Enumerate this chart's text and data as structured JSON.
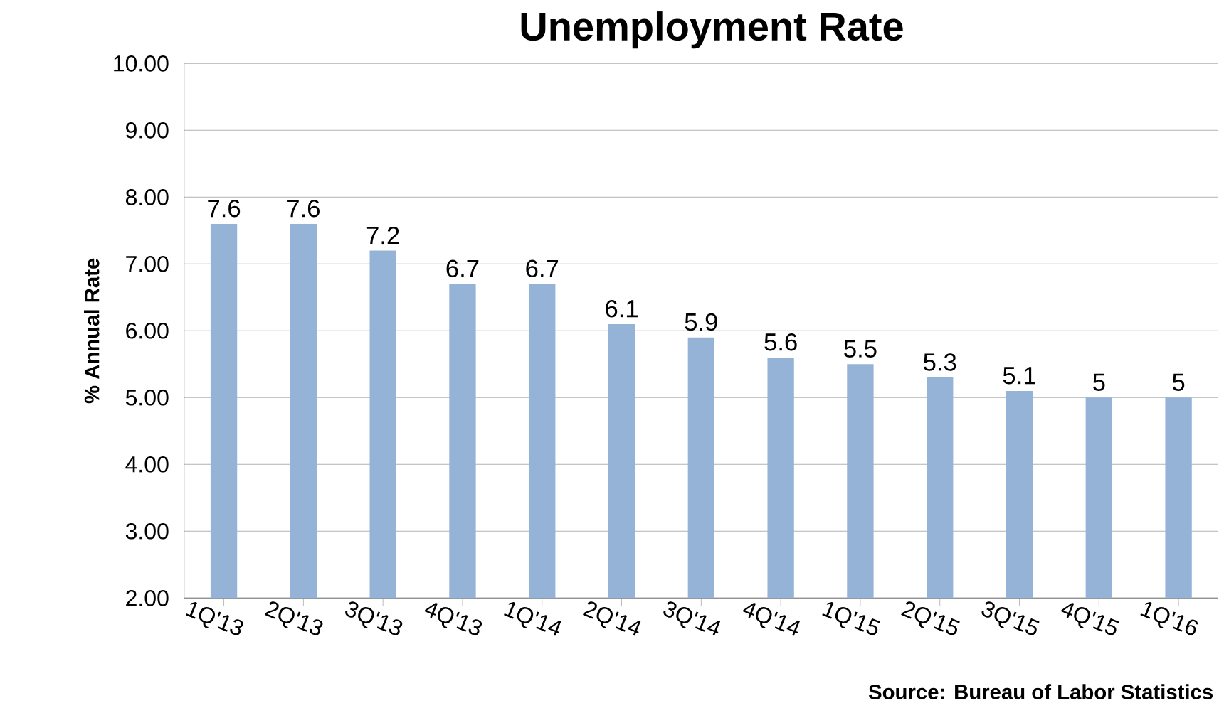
{
  "chart_data": {
    "type": "bar",
    "title": "Unemployment Rate",
    "ylabel": "% Annual Rate",
    "categories": [
      "1Q'13",
      "2Q'13",
      "3Q'13",
      "4Q'13",
      "1Q'14",
      "2Q'14",
      "3Q'14",
      "4Q'14",
      "1Q'15",
      "2Q'15",
      "3Q'15",
      "4Q'15",
      "1Q'16"
    ],
    "values": [
      7.6,
      7.6,
      7.2,
      6.7,
      6.7,
      6.1,
      5.9,
      5.6,
      5.5,
      5.3,
      5.1,
      5,
      5
    ],
    "color": "#95b3d7",
    "ylim": [
      2,
      10
    ],
    "yticks": [
      {
        "value": 2,
        "label": "2.00"
      },
      {
        "value": 3,
        "label": "3.00"
      },
      {
        "value": 4,
        "label": "4.00"
      },
      {
        "value": 5,
        "label": "5.00"
      },
      {
        "value": 6,
        "label": "6.00"
      },
      {
        "value": 7,
        "label": "7.00"
      },
      {
        "value": 8,
        "label": "8.00"
      },
      {
        "value": 9,
        "label": "9.00"
      },
      {
        "value": 10,
        "label": "10.00"
      }
    ],
    "grid": "y",
    "data_labels": true,
    "annotations": [
      "Source: Bureau of Labor Statistics"
    ]
  }
}
